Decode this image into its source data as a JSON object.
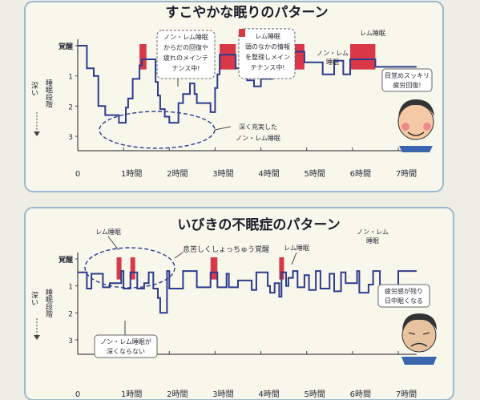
{
  "panel1": {
    "title": "すこやかな眠りのパターン",
    "ylabels": [
      "覚醒",
      "1",
      "2",
      "3"
    ],
    "axis_side_label": "深い",
    "axis_side_label2": "睡眠段階",
    "xticks": [
      "0",
      "1時間",
      "2時間",
      "3時間",
      "4時間",
      "5時間",
      "6時間",
      "7時間"
    ],
    "callout_left": [
      "ノン・レム睡眠",
      "からだの回復や",
      "疲れのメインテ",
      "ナンス中!"
    ],
    "callout_mid": [
      "レム睡眠",
      "頭のなかの情報",
      "を整理しメイン",
      "テナンス中!"
    ],
    "label_nonrem": "ノン・レム",
    "label_nonrem2": "睡眠",
    "label_rem": "レム睡眠",
    "label_deep": [
      "深く充実した",
      "ノン・レム睡眠"
    ],
    "label_wake": [
      "目覚めスッキリ",
      "疲労回復!"
    ]
  },
  "panel2": {
    "title": "いびきの不眠症のパターン",
    "ylabels": [
      "覚醒",
      "1",
      "2",
      "3"
    ],
    "axis_side_label": "深い",
    "axis_side_label2": "睡眠段階",
    "xticks": [
      "0",
      "1時間",
      "2時間",
      "3時間",
      "4時間",
      "5時間",
      "6時間",
      "7時間"
    ],
    "label_rem_left": "レム睡眠",
    "label_wake_often": "息苦しくしょっちゅう覚醒",
    "label_rem_mid": "レム睡眠",
    "label_nonrem_top": "ノン・レム",
    "label_nonrem_top2": "睡眠",
    "label_shallow": [
      "ノン・レム睡眠が",
      "深くならない"
    ],
    "label_tired": [
      "疲労感が残り",
      "日中眠くなる"
    ]
  },
  "colors": {
    "rem": "#d83848",
    "line": "#2d3c8c",
    "panel": "#f8f8ee",
    "border": "#9bb8cc",
    "title_bg": "#ffffff"
  },
  "chart_data": [
    {
      "type": "line",
      "title": "すこやかな眠りのパターン",
      "x_unit": "hours",
      "y_categories": [
        "覚醒",
        "1",
        "2",
        "3"
      ],
      "series": [
        {
          "points": [
            [
              0,
              0
            ],
            [
              0.2,
              0
            ],
            [
              0.2,
              0.75
            ],
            [
              0.35,
              0.75
            ],
            [
              0.35,
              1
            ],
            [
              0.45,
              1
            ],
            [
              0.45,
              2
            ],
            [
              0.6,
              2
            ],
            [
              0.6,
              2.3
            ],
            [
              0.9,
              2.3
            ],
            [
              0.9,
              2.55
            ],
            [
              1.05,
              2.55
            ],
            [
              1.05,
              2.05
            ],
            [
              1.1,
              2.05
            ],
            [
              1.1,
              1.75
            ],
            [
              1.2,
              1.75
            ],
            [
              1.2,
              1.1
            ],
            [
              1.35,
              1.1
            ],
            [
              1.35,
              0.65
            ],
            [
              1.4,
              0.65
            ],
            [
              1.4,
              0.45
            ],
            [
              1.7,
              0.45
            ],
            [
              1.7,
              1.2
            ],
            [
              1.75,
              1.2
            ],
            [
              1.75,
              1.65
            ],
            [
              1.8,
              1.65
            ],
            [
              1.8,
              2.1
            ],
            [
              1.9,
              2.1
            ],
            [
              1.9,
              2.35
            ],
            [
              2.0,
              2.35
            ],
            [
              2.0,
              2.55
            ],
            [
              2.2,
              2.55
            ],
            [
              2.2,
              1.9
            ],
            [
              2.3,
              1.9
            ],
            [
              2.3,
              1.6
            ],
            [
              2.45,
              1.6
            ],
            [
              2.45,
              1.25
            ],
            [
              2.55,
              1.25
            ],
            [
              2.55,
              1.6
            ],
            [
              2.6,
              1.6
            ],
            [
              2.6,
              1.9
            ],
            [
              2.9,
              1.9
            ],
            [
              2.9,
              2.2
            ],
            [
              3.0,
              2.2
            ],
            [
              3.0,
              1.4
            ],
            [
              3.05,
              1.4
            ],
            [
              3.05,
              0.95
            ],
            [
              3.1,
              0.95
            ],
            [
              3.1,
              0.3
            ],
            [
              3.45,
              0.3
            ],
            [
              3.45,
              0.75
            ],
            [
              3.7,
              0.75
            ],
            [
              3.7,
              1.15
            ],
            [
              3.85,
              1.15
            ],
            [
              3.85,
              1.35
            ],
            [
              4.0,
              1.35
            ],
            [
              4.0,
              1.1
            ],
            [
              4.25,
              1.1
            ],
            [
              4.25,
              0.55
            ],
            [
              4.6,
              0.55
            ],
            [
              4.6,
              0.2
            ],
            [
              4.95,
              0.2
            ],
            [
              4.95,
              0.55
            ],
            [
              5.35,
              0.55
            ],
            [
              5.35,
              0.95
            ],
            [
              5.6,
              0.95
            ],
            [
              5.6,
              0.5
            ],
            [
              5.8,
              0.5
            ],
            [
              5.8,
              0.95
            ],
            [
              5.95,
              0.95
            ],
            [
              5.95,
              0.45
            ],
            [
              6.5,
              0.45
            ],
            [
              6.5,
              0.7
            ],
            [
              7.4,
              0.7
            ]
          ]
        }
      ],
      "rem_periods_hours": [
        [
          1.35,
          1.5
        ],
        [
          3.1,
          3.45
        ],
        [
          4.6,
          4.95
        ],
        [
          5.95,
          6.5
        ]
      ]
    },
    {
      "type": "line",
      "title": "いびきの不眠症のパターン",
      "x_unit": "hours",
      "y_categories": [
        "覚醒",
        "1",
        "2",
        "3"
      ],
      "series": [
        {
          "points": [
            [
              0,
              0.5
            ],
            [
              0.2,
              0.5
            ],
            [
              0.2,
              1.1
            ],
            [
              0.3,
              1.1
            ],
            [
              0.3,
              0.55
            ],
            [
              0.55,
              0.55
            ],
            [
              0.55,
              1.05
            ],
            [
              0.7,
              1.05
            ],
            [
              0.7,
              0.9
            ],
            [
              0.95,
              0.9
            ],
            [
              0.95,
              0.45
            ],
            [
              1.0,
              0.45
            ],
            [
              1.0,
              1.1
            ],
            [
              1.15,
              1.1
            ],
            [
              1.15,
              0.5
            ],
            [
              1.3,
              0.5
            ],
            [
              1.3,
              1.1
            ],
            [
              1.45,
              1.1
            ],
            [
              1.45,
              0.9
            ],
            [
              1.55,
              0.9
            ],
            [
              1.55,
              0.5
            ],
            [
              1.65,
              0.5
            ],
            [
              1.65,
              1.1
            ],
            [
              1.75,
              1.1
            ],
            [
              1.75,
              1.45
            ],
            [
              1.8,
              1.45
            ],
            [
              1.8,
              2.0
            ],
            [
              1.95,
              2.0
            ],
            [
              1.95,
              0.45
            ],
            [
              2.0,
              0.45
            ],
            [
              2.0,
              1.1
            ],
            [
              2.3,
              1.1
            ],
            [
              2.3,
              0.45
            ],
            [
              2.6,
              0.45
            ],
            [
              2.6,
              1.05
            ],
            [
              2.9,
              1.05
            ],
            [
              2.9,
              0.5
            ],
            [
              3.05,
              0.5
            ],
            [
              3.05,
              1.05
            ],
            [
              3.25,
              1.05
            ],
            [
              3.25,
              0.55
            ],
            [
              3.3,
              0.55
            ],
            [
              3.3,
              1.05
            ],
            [
              3.5,
              1.05
            ],
            [
              3.5,
              0.8
            ],
            [
              3.8,
              0.8
            ],
            [
              3.8,
              1.15
            ],
            [
              3.9,
              1.15
            ],
            [
              3.9,
              0.5
            ],
            [
              4.15,
              0.5
            ],
            [
              4.15,
              1.0
            ],
            [
              4.2,
              1.0
            ],
            [
              4.2,
              1.25
            ],
            [
              4.3,
              1.25
            ],
            [
              4.3,
              0.9
            ],
            [
              4.4,
              0.9
            ],
            [
              4.4,
              1.4
            ],
            [
              4.45,
              1.4
            ],
            [
              4.45,
              0.5
            ],
            [
              4.55,
              0.5
            ],
            [
              4.55,
              1.0
            ],
            [
              4.6,
              1.0
            ],
            [
              4.6,
              0.7
            ],
            [
              4.7,
              0.7
            ],
            [
              4.7,
              0.45
            ],
            [
              4.8,
              0.45
            ],
            [
              4.8,
              1.05
            ],
            [
              4.95,
              1.05
            ],
            [
              4.95,
              0.6
            ],
            [
              5.05,
              0.6
            ],
            [
              5.05,
              1.15
            ],
            [
              5.2,
              1.15
            ],
            [
              5.2,
              0.45
            ],
            [
              5.3,
              0.45
            ],
            [
              5.3,
              1.1
            ],
            [
              5.5,
              1.1
            ],
            [
              5.5,
              0.55
            ],
            [
              5.6,
              0.55
            ],
            [
              5.6,
              1.2
            ],
            [
              5.75,
              1.2
            ],
            [
              5.75,
              0.5
            ],
            [
              5.85,
              0.5
            ],
            [
              5.85,
              0.9
            ],
            [
              6.1,
              0.9
            ],
            [
              6.1,
              0.45
            ],
            [
              6.15,
              0.45
            ],
            [
              6.15,
              1.25
            ],
            [
              6.35,
              1.25
            ],
            [
              6.35,
              0.95
            ],
            [
              6.45,
              0.95
            ],
            [
              6.45,
              0.45
            ],
            [
              6.6,
              0.45
            ],
            [
              6.6,
              1.05
            ],
            [
              6.9,
              1.05
            ],
            [
              6.9,
              1.3
            ],
            [
              7.0,
              1.3
            ],
            [
              7.0,
              0.45
            ],
            [
              7.4,
              0.45
            ]
          ]
        }
      ],
      "rem_periods_hours": [
        [
          0.85,
          0.95
        ],
        [
          1.15,
          1.2
        ],
        [
          2.9,
          3.05
        ],
        [
          4.4,
          4.5
        ]
      ],
      "annotation_ellipse_hours": [
        0.2,
        1.85
      ]
    }
  ]
}
